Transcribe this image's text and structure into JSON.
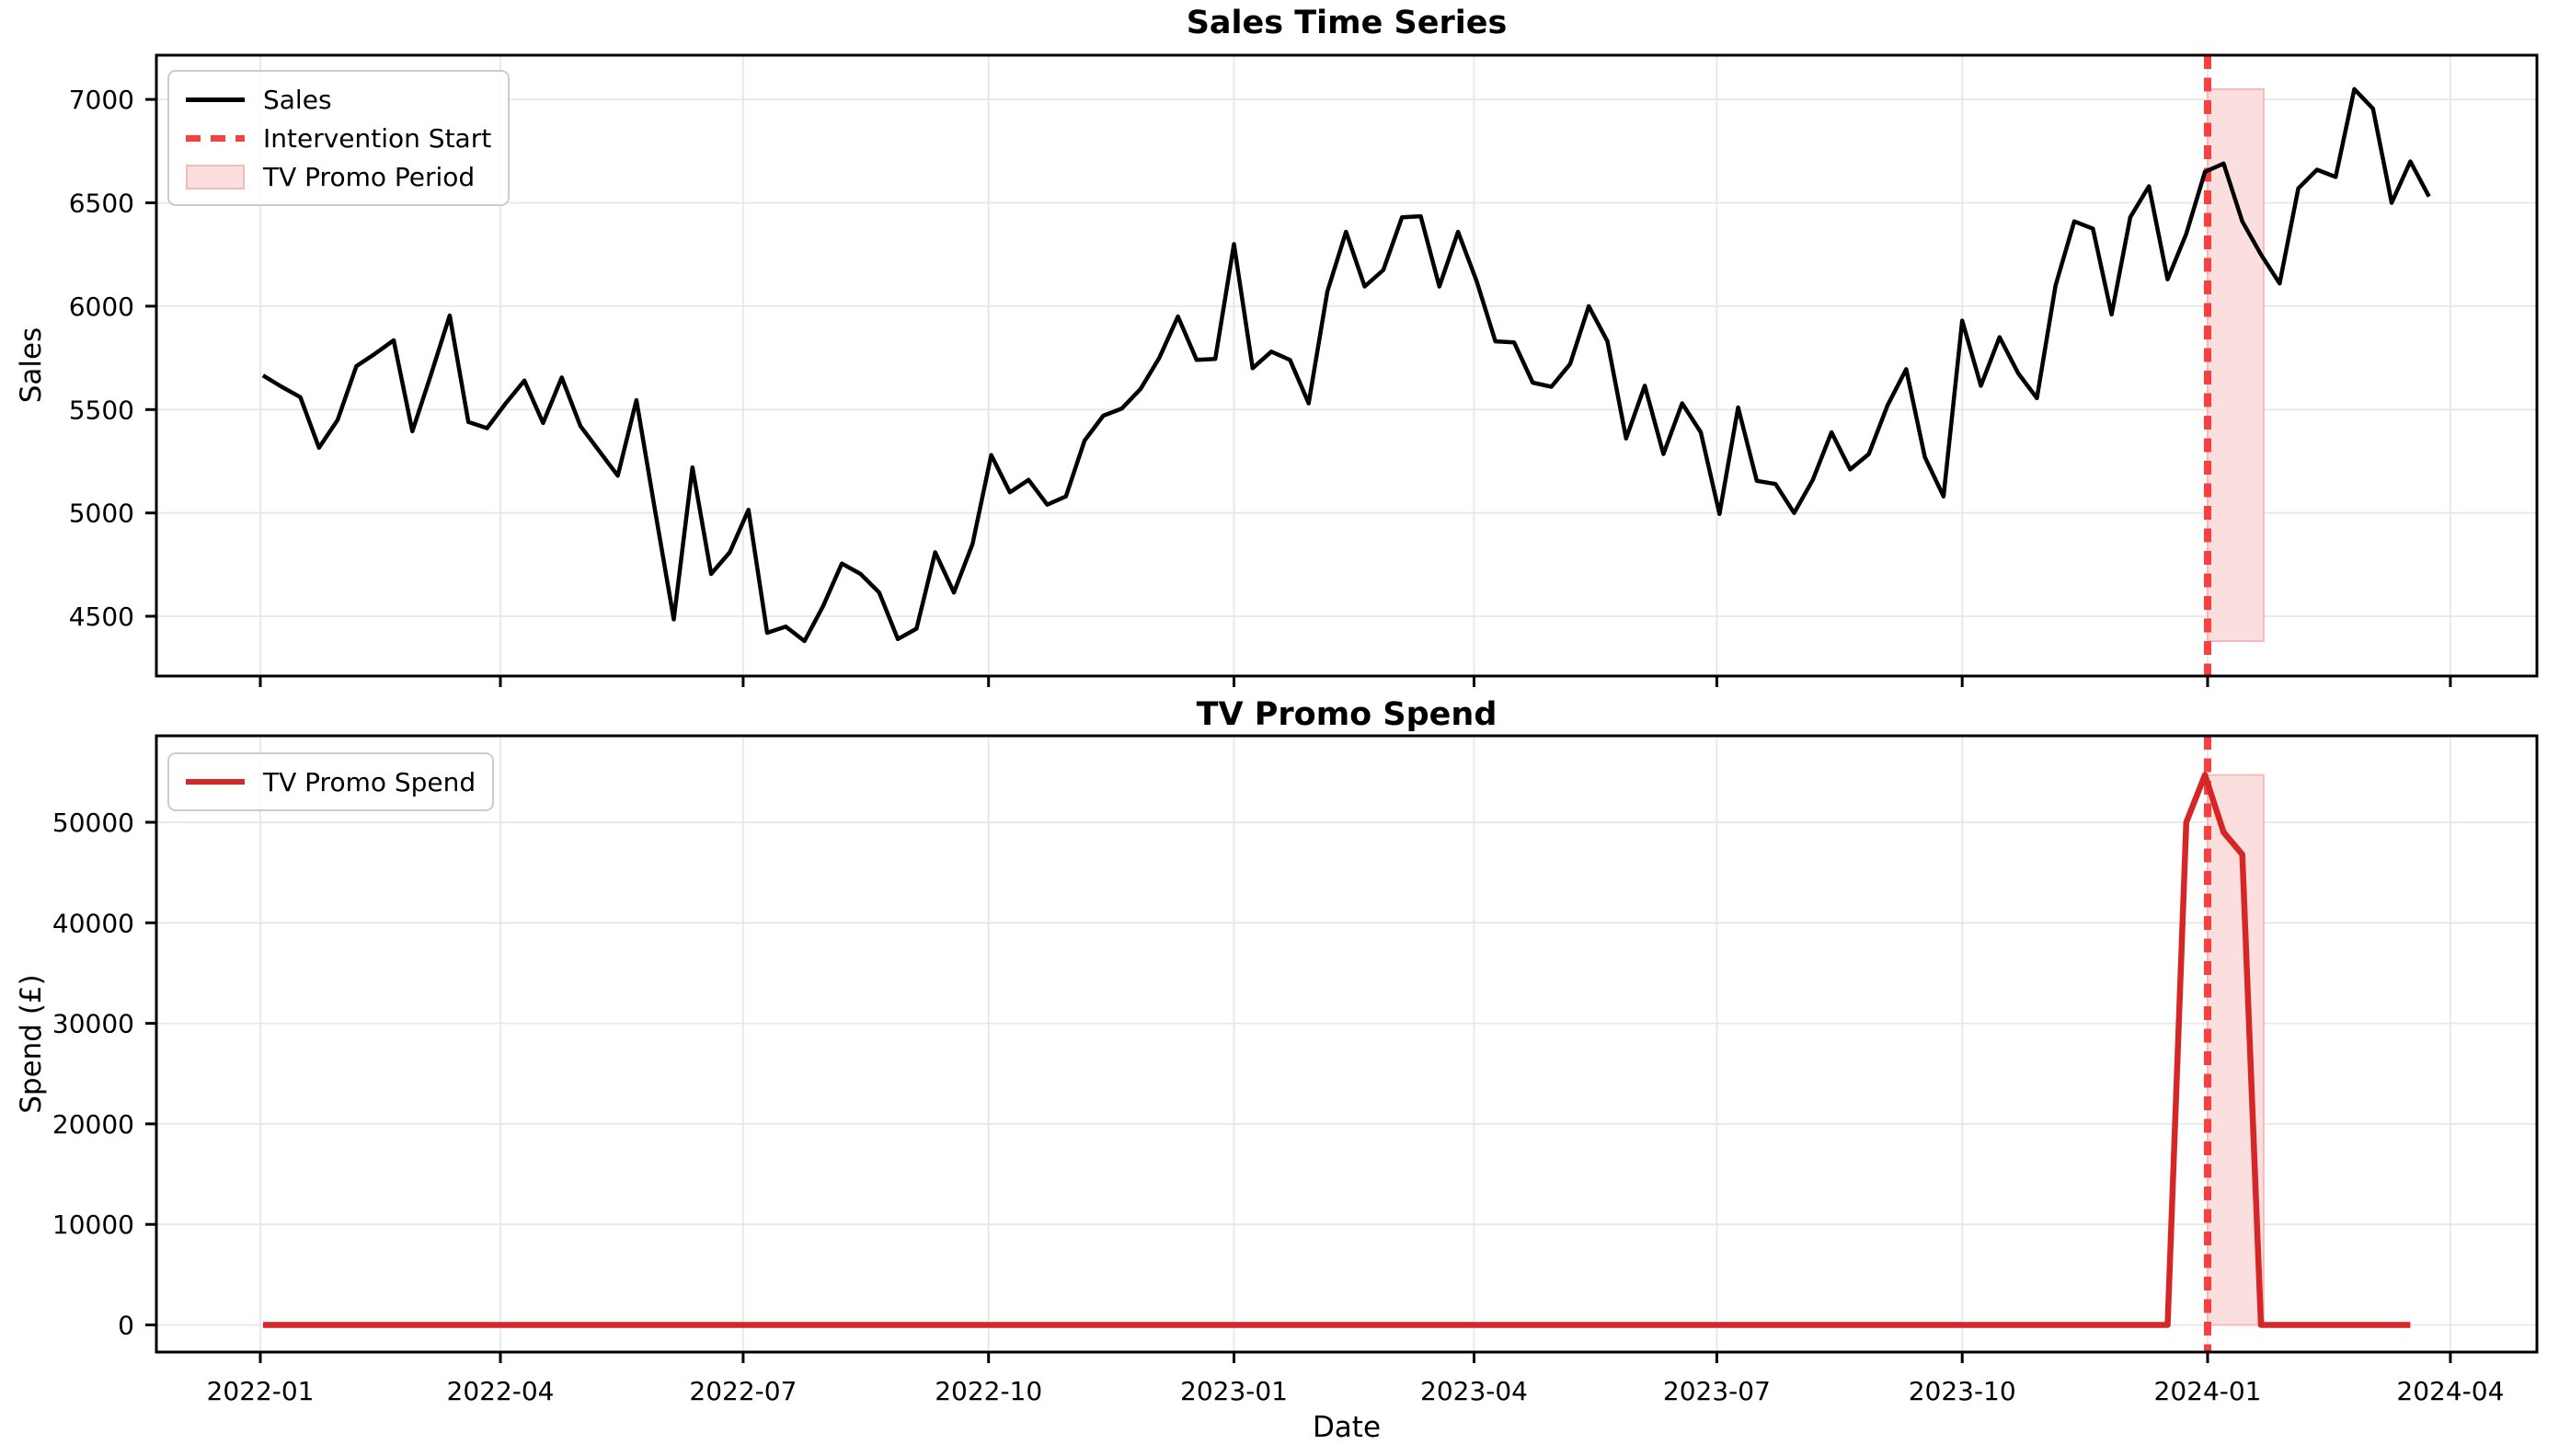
{
  "figure": {
    "background": "#ffffff"
  },
  "colors": {
    "sales_line": "#000000",
    "intervention": "#f84040",
    "promo_fill": "#fbdede",
    "promo_edge": "#f3bcbc",
    "spend_line": "#d62728",
    "grid": "#e7e7e7",
    "spine": "#000000",
    "text": "#000000"
  },
  "charts": {
    "sales": {
      "title": "Sales Time Series",
      "ylabel": "Sales",
      "legend": [
        {
          "label": "Sales"
        },
        {
          "label": "Intervention Start"
        },
        {
          "label": "TV Promo Period"
        }
      ]
    },
    "spend": {
      "title": "TV Promo Spend",
      "ylabel": "Spend (£)",
      "xlabel": "Date",
      "legend": [
        {
          "label": "TV Promo Spend"
        }
      ]
    }
  },
  "chart_data": [
    {
      "id": "sales",
      "type": "line",
      "title": "Sales Time Series",
      "ylabel": "Sales",
      "line_width": 4.5,
      "color": "#000000",
      "ylim": [
        4211,
        7214
      ],
      "yticks": [
        4500,
        5000,
        5500,
        6000,
        6500,
        7000
      ],
      "ytick_labels": [
        "4500",
        "5000",
        "5500",
        "6000",
        "6500",
        "7000"
      ],
      "xticks": [
        {
          "label": "2022-01",
          "date": "2022-01-01"
        },
        {
          "label": "2022-04",
          "date": "2022-04-01"
        },
        {
          "label": "2022-07",
          "date": "2022-07-01"
        },
        {
          "label": "2022-10",
          "date": "2022-10-01"
        },
        {
          "label": "2023-01",
          "date": "2023-01-01"
        },
        {
          "label": "2023-04",
          "date": "2023-04-01"
        },
        {
          "label": "2023-07",
          "date": "2023-07-01"
        },
        {
          "label": "2023-10",
          "date": "2023-10-01"
        },
        {
          "label": "2024-01",
          "date": "2024-01-01"
        },
        {
          "label": "2024-04",
          "date": "2024-04-01"
        }
      ],
      "intervention": "2024-01-01",
      "promo_band": {
        "start": "2024-01-01",
        "end": "2024-01-22",
        "ymin": 4380,
        "ymax": 7050
      },
      "dates": [
        "2022-01-02",
        "2022-01-09",
        "2022-01-16",
        "2022-01-23",
        "2022-01-30",
        "2022-02-06",
        "2022-02-13",
        "2022-02-20",
        "2022-02-27",
        "2022-03-06",
        "2022-03-13",
        "2022-03-20",
        "2022-03-27",
        "2022-04-03",
        "2022-04-10",
        "2022-04-17",
        "2022-04-24",
        "2022-05-01",
        "2022-05-08",
        "2022-05-15",
        "2022-05-22",
        "2022-05-29",
        "2022-06-05",
        "2022-06-12",
        "2022-06-19",
        "2022-06-26",
        "2022-07-03",
        "2022-07-10",
        "2022-07-17",
        "2022-07-24",
        "2022-07-31",
        "2022-08-07",
        "2022-08-14",
        "2022-08-21",
        "2022-08-28",
        "2022-09-04",
        "2022-09-11",
        "2022-09-18",
        "2022-09-25",
        "2022-10-02",
        "2022-10-09",
        "2022-10-16",
        "2022-10-23",
        "2022-10-30",
        "2022-11-06",
        "2022-11-13",
        "2022-11-20",
        "2022-11-27",
        "2022-12-04",
        "2022-12-11",
        "2022-12-18",
        "2022-12-25",
        "2023-01-01",
        "2023-01-08",
        "2023-01-15",
        "2023-01-22",
        "2023-01-29",
        "2023-02-05",
        "2023-02-12",
        "2023-02-19",
        "2023-02-26",
        "2023-03-05",
        "2023-03-12",
        "2023-03-19",
        "2023-03-26",
        "2023-04-02",
        "2023-04-09",
        "2023-04-16",
        "2023-04-23",
        "2023-04-30",
        "2023-05-07",
        "2023-05-14",
        "2023-05-21",
        "2023-05-28",
        "2023-06-04",
        "2023-06-11",
        "2023-06-18",
        "2023-06-25",
        "2023-07-02",
        "2023-07-09",
        "2023-07-16",
        "2023-07-23",
        "2023-07-30",
        "2023-08-06",
        "2023-08-13",
        "2023-08-20",
        "2023-08-27",
        "2023-09-03",
        "2023-09-10",
        "2023-09-17",
        "2023-09-24",
        "2023-10-01",
        "2023-10-08",
        "2023-10-15",
        "2023-10-22",
        "2023-10-29",
        "2023-11-05",
        "2023-11-12",
        "2023-11-19",
        "2023-11-26",
        "2023-12-03",
        "2023-12-10",
        "2023-12-17",
        "2023-12-24",
        "2023-12-31",
        "2024-01-07",
        "2024-01-14",
        "2024-01-21",
        "2024-01-28",
        "2024-02-04",
        "2024-02-11",
        "2024-02-18",
        "2024-02-25",
        "2024-03-03",
        "2024-03-10",
        "2024-03-17",
        "2024-03-24"
      ],
      "values": [
        5665,
        5610,
        5560,
        5315,
        5450,
        5710,
        5770,
        5835,
        5395,
        5670,
        5955,
        5440,
        5410,
        5530,
        5640,
        5435,
        5655,
        5420,
        5300,
        5180,
        5545,
        5010,
        4485,
        5220,
        4705,
        4810,
        5015,
        4420,
        4450,
        4380,
        4550,
        4755,
        4705,
        4615,
        4390,
        4440,
        4810,
        4615,
        4850,
        5280,
        5100,
        5160,
        5040,
        5080,
        5350,
        5470,
        5505,
        5600,
        5750,
        5950,
        5740,
        5745,
        6300,
        5700,
        5780,
        5740,
        5530,
        6070,
        6360,
        6095,
        6175,
        6430,
        6435,
        6095,
        6360,
        6120,
        5830,
        5825,
        5630,
        5610,
        5720,
        6000,
        5830,
        5360,
        5615,
        5285,
        5530,
        5390,
        4995,
        5510,
        5155,
        5140,
        5000,
        5160,
        5390,
        5210,
        5285,
        5520,
        5695,
        5270,
        5080,
        5930,
        5615,
        5850,
        5675,
        5555,
        6100,
        6410,
        6375,
        5960,
        6430,
        6580,
        6130,
        6350,
        6650,
        6690,
        6410,
        6250,
        6110,
        6570,
        6660,
        6625,
        7050,
        6955,
        6500,
        6700,
        6530
      ]
    },
    {
      "id": "spend",
      "type": "line",
      "title": "TV Promo Spend",
      "ylabel": "Spend (£)",
      "xlabel": "Date",
      "line_width": 6.5,
      "color": "#d62728",
      "ylim": [
        -2700,
        58600
      ],
      "yticks": [
        0,
        10000,
        20000,
        30000,
        40000,
        50000
      ],
      "ytick_labels": [
        "0",
        "10000",
        "20000",
        "30000",
        "40000",
        "50000"
      ],
      "xticks": [
        {
          "label": "2022-01",
          "date": "2022-01-01"
        },
        {
          "label": "2022-04",
          "date": "2022-04-01"
        },
        {
          "label": "2022-07",
          "date": "2022-07-01"
        },
        {
          "label": "2022-10",
          "date": "2022-10-01"
        },
        {
          "label": "2023-01",
          "date": "2023-01-01"
        },
        {
          "label": "2023-04",
          "date": "2023-04-01"
        },
        {
          "label": "2023-07",
          "date": "2023-07-01"
        },
        {
          "label": "2023-10",
          "date": "2023-10-01"
        },
        {
          "label": "2024-01",
          "date": "2024-01-01"
        },
        {
          "label": "2024-04",
          "date": "2024-04-01"
        }
      ],
      "intervention": "2024-01-01",
      "promo_band": {
        "start": "2024-01-01",
        "end": "2024-01-22",
        "ymin": 0,
        "ymax": 54700
      },
      "values": [
        0,
        0,
        0,
        0,
        0,
        0,
        0,
        0,
        0,
        0,
        0,
        0,
        0,
        0,
        0,
        0,
        0,
        0,
        0,
        0,
        0,
        0,
        0,
        0,
        0,
        0,
        0,
        0,
        0,
        0,
        0,
        0,
        0,
        0,
        0,
        0,
        0,
        0,
        0,
        0,
        0,
        0,
        0,
        0,
        0,
        0,
        0,
        0,
        0,
        0,
        0,
        0,
        0,
        0,
        0,
        0,
        0,
        0,
        0,
        0,
        0,
        0,
        0,
        0,
        0,
        0,
        0,
        0,
        0,
        0,
        0,
        0,
        0,
        0,
        0,
        0,
        0,
        0,
        0,
        0,
        0,
        0,
        0,
        0,
        0,
        0,
        0,
        0,
        0,
        0,
        0,
        0,
        0,
        0,
        0,
        0,
        0,
        0,
        0,
        0,
        0,
        0,
        0,
        50000,
        54700,
        49000,
        46800,
        0,
        0,
        0,
        0,
        0,
        0,
        0,
        0,
        0
      ]
    }
  ]
}
